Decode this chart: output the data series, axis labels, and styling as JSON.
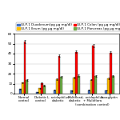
{
  "categories": [
    "Normal\ncontrol",
    "Diabetic\ncontrol",
    "L. acidophilus\ndiabetic",
    "Multiflora\ndiabetic",
    "L. acidophilus\n+ Multiflora\n(combination control)",
    "Saxagliptin"
  ],
  "series": [
    {
      "label": "GLP-1 Duodenum(pg µg mg/dl)",
      "color": "#4472c4",
      "values": [
        4.5,
        1.5,
        3.5,
        3.2,
        3.5,
        3.3
      ]
    },
    {
      "label": "GLP-1 Ileum (pg µg mg/dl)",
      "color": "#ffc000",
      "values": [
        11.0,
        5.5,
        14.5,
        16.0,
        14.0,
        15.0
      ]
    },
    {
      "label": "GLP-1 Colon (pg µg mg/dl)",
      "color": "#ff0000",
      "values": [
        52.0,
        10.5,
        38.0,
        42.0,
        48.0,
        41.0
      ]
    },
    {
      "label": "GLP-1 Pancreas (pg µg mg/dl)",
      "color": "#70ad47",
      "values": [
        13.5,
        8.0,
        17.0,
        18.0,
        17.5,
        18.0
      ]
    }
  ],
  "sem": [
    [
      0.3,
      0.2,
      0.4,
      0.4,
      0.4,
      0.3
    ],
    [
      0.5,
      0.4,
      0.7,
      0.8,
      0.7,
      0.7
    ],
    [
      1.5,
      0.6,
      1.2,
      1.3,
      1.4,
      1.2
    ],
    [
      0.7,
      0.5,
      0.8,
      0.9,
      0.8,
      0.8
    ]
  ],
  "ylim": [
    0,
    60
  ],
  "yticks": [
    0,
    10,
    20,
    30,
    40,
    50,
    60
  ],
  "bar_width": 0.13,
  "legend_fontsize": 3.0,
  "tick_fontsize": 3.0,
  "label_fontsize": 2.8
}
